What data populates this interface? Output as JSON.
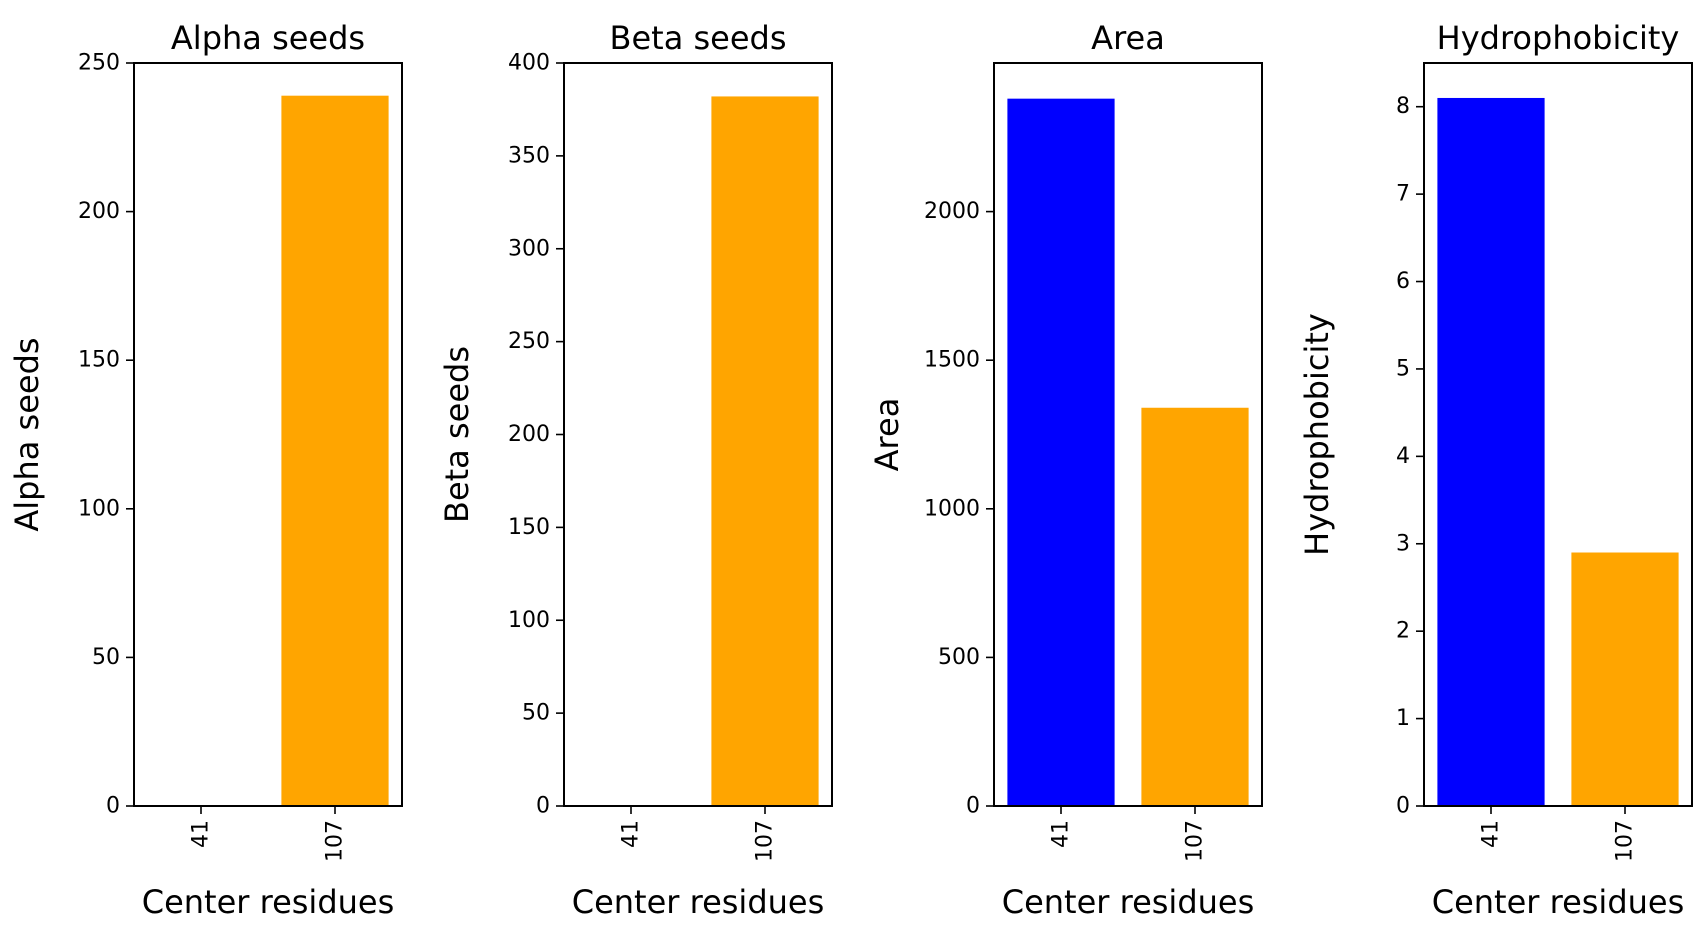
{
  "chart_data": [
    {
      "type": "bar",
      "title": "Alpha seeds",
      "xlabel": "Center residues",
      "ylabel": "Alpha seeds",
      "categories": [
        "41",
        "107"
      ],
      "values": [
        0,
        239
      ],
      "colors": [
        "#0000ff",
        "#ffa500"
      ],
      "ylim": [
        0,
        250
      ],
      "yticks": [
        0,
        50,
        100,
        150,
        200,
        250
      ]
    },
    {
      "type": "bar",
      "title": "Beta seeds",
      "xlabel": "Center residues",
      "ylabel": "Beta seeds",
      "categories": [
        "41",
        "107"
      ],
      "values": [
        0,
        382
      ],
      "colors": [
        "#0000ff",
        "#ffa500"
      ],
      "ylim": [
        0,
        400
      ],
      "yticks": [
        0,
        50,
        100,
        150,
        200,
        250,
        300,
        350,
        400
      ]
    },
    {
      "type": "bar",
      "title": "Area",
      "xlabel": "Center residues",
      "ylabel": "Area",
      "categories": [
        "41",
        "107"
      ],
      "values": [
        2380,
        1340
      ],
      "colors": [
        "#0000ff",
        "#ffa500"
      ],
      "ylim": [
        0,
        2500
      ],
      "yticks": [
        0,
        500,
        1000,
        1500,
        2000
      ]
    },
    {
      "type": "bar",
      "title": "Hydrophobicity",
      "xlabel": "Center residues",
      "ylabel": "Hydrophobicity",
      "categories": [
        "41",
        "107"
      ],
      "values": [
        8.1,
        2.9
      ],
      "colors": [
        "#0000ff",
        "#ffa500"
      ],
      "ylim": [
        0,
        8.5
      ],
      "yticks": [
        0,
        1,
        2,
        3,
        4,
        5,
        6,
        7,
        8
      ]
    }
  ]
}
